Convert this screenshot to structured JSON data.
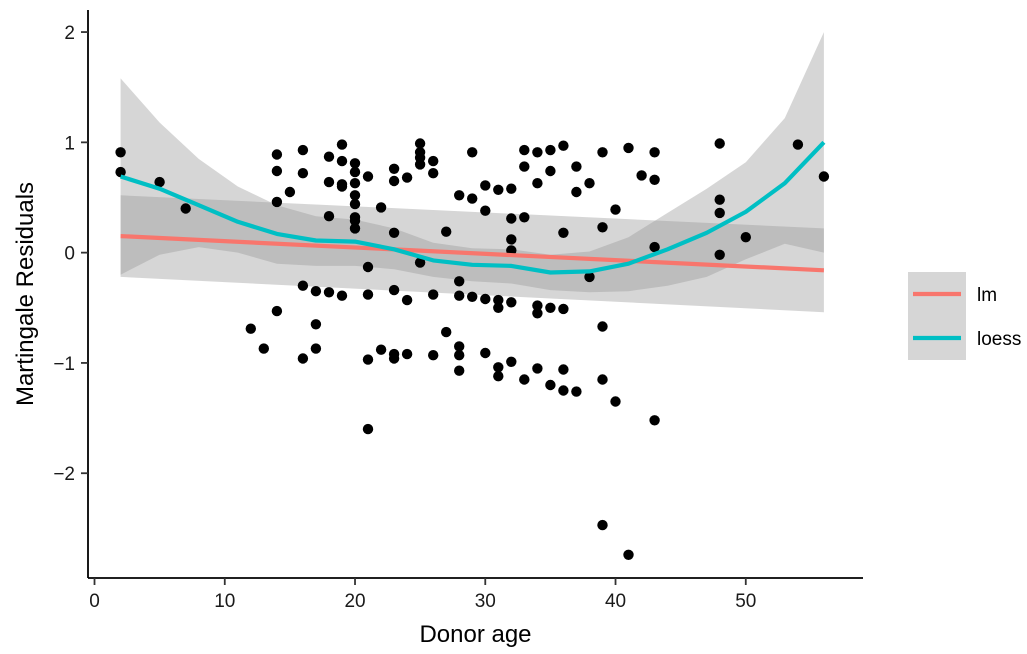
{
  "chart_data": {
    "type": "scatter",
    "title": "",
    "xlabel": "Donor age",
    "ylabel": "Martingale Residuals",
    "xlim": [
      -0.5,
      59
    ],
    "ylim": [
      -2.95,
      2.2
    ],
    "x_ticks": [
      0,
      10,
      20,
      30,
      40,
      50
    ],
    "y_ticks": [
      -2,
      -1,
      0,
      1,
      2
    ],
    "y_tick_labels": [
      "−2",
      "−1",
      "0",
      "1",
      "2"
    ],
    "grid": false,
    "legend_position": "right",
    "colors": {
      "points": "#000000",
      "lm": "#F8766D",
      "loess": "#00BFC4",
      "ribbon": "#999999"
    },
    "points": [
      [
        2,
        0.91
      ],
      [
        2,
        0.73
      ],
      [
        5,
        0.64
      ],
      [
        7,
        0.4
      ],
      [
        12,
        -0.69
      ],
      [
        13,
        -0.87
      ],
      [
        14,
        0.89
      ],
      [
        14,
        0.74
      ],
      [
        14,
        0.46
      ],
      [
        14,
        -0.53
      ],
      [
        15,
        0.55
      ],
      [
        16,
        0.93
      ],
      [
        16,
        0.72
      ],
      [
        16,
        -0.3
      ],
      [
        16,
        -0.96
      ],
      [
        17,
        -0.35
      ],
      [
        17,
        -0.65
      ],
      [
        17,
        -0.87
      ],
      [
        18,
        0.87
      ],
      [
        18,
        0.64
      ],
      [
        18,
        0.33
      ],
      [
        18,
        -0.36
      ],
      [
        19,
        0.98
      ],
      [
        19,
        0.83
      ],
      [
        19,
        0.62
      ],
      [
        19,
        0.6
      ],
      [
        19,
        -0.39
      ],
      [
        20,
        0.81
      ],
      [
        20,
        0.73
      ],
      [
        20,
        0.63
      ],
      [
        20,
        0.52
      ],
      [
        20,
        0.44
      ],
      [
        20,
        0.32
      ],
      [
        20,
        0.29
      ],
      [
        20,
        0.22
      ],
      [
        21,
        0.69
      ],
      [
        21,
        -0.13
      ],
      [
        21,
        -0.38
      ],
      [
        21,
        -0.97
      ],
      [
        21,
        -1.6
      ],
      [
        22,
        0.41
      ],
      [
        22,
        -0.88
      ],
      [
        23,
        0.76
      ],
      [
        23,
        0.65
      ],
      [
        23,
        0.18
      ],
      [
        23,
        -0.34
      ],
      [
        23,
        -0.92
      ],
      [
        23,
        -0.96
      ],
      [
        24,
        0.68
      ],
      [
        24,
        -0.43
      ],
      [
        24,
        -0.92
      ],
      [
        25,
        0.99
      ],
      [
        25,
        0.91
      ],
      [
        25,
        0.86
      ],
      [
        25,
        0.8
      ],
      [
        25,
        -0.09
      ],
      [
        26,
        0.83
      ],
      [
        26,
        0.72
      ],
      [
        26,
        -0.38
      ],
      [
        26,
        -0.93
      ],
      [
        27,
        0.19
      ],
      [
        27,
        -0.72
      ],
      [
        28,
        0.52
      ],
      [
        28,
        -0.26
      ],
      [
        28,
        -0.39
      ],
      [
        28,
        -0.85
      ],
      [
        28,
        -0.93
      ],
      [
        28,
        -1.07
      ],
      [
        29,
        0.91
      ],
      [
        29,
        0.49
      ],
      [
        29,
        -0.4
      ],
      [
        30,
        0.61
      ],
      [
        30,
        0.38
      ],
      [
        30,
        -0.42
      ],
      [
        30,
        -0.91
      ],
      [
        31,
        0.57
      ],
      [
        31,
        -0.43
      ],
      [
        31,
        -0.5
      ],
      [
        31,
        -1.04
      ],
      [
        31,
        -1.12
      ],
      [
        32,
        0.58
      ],
      [
        32,
        0.31
      ],
      [
        32,
        0.12
      ],
      [
        32,
        0.02
      ],
      [
        32,
        -0.45
      ],
      [
        32,
        -0.99
      ],
      [
        33,
        0.93
      ],
      [
        33,
        0.78
      ],
      [
        33,
        0.32
      ],
      [
        33,
        -1.15
      ],
      [
        34,
        0.91
      ],
      [
        34,
        0.63
      ],
      [
        34,
        -0.48
      ],
      [
        34,
        -0.55
      ],
      [
        34,
        -1.05
      ],
      [
        35,
        0.93
      ],
      [
        35,
        0.74
      ],
      [
        35,
        -0.5
      ],
      [
        35,
        -1.2
      ],
      [
        36,
        0.97
      ],
      [
        36,
        0.18
      ],
      [
        36,
        -0.51
      ],
      [
        36,
        -1.06
      ],
      [
        36,
        -1.25
      ],
      [
        37,
        0.78
      ],
      [
        37,
        0.55
      ],
      [
        37,
        -1.26
      ],
      [
        38,
        0.63
      ],
      [
        38,
        -0.22
      ],
      [
        39,
        0.91
      ],
      [
        39,
        0.23
      ],
      [
        39,
        -0.67
      ],
      [
        39,
        -1.15
      ],
      [
        39,
        -2.47
      ],
      [
        40,
        0.39
      ],
      [
        40,
        -1.35
      ],
      [
        41,
        0.95
      ],
      [
        41,
        -2.74
      ],
      [
        42,
        0.7
      ],
      [
        43,
        0.91
      ],
      [
        43,
        0.66
      ],
      [
        43,
        0.05
      ],
      [
        43,
        -1.52
      ],
      [
        48,
        0.99
      ],
      [
        48,
        0.48
      ],
      [
        48,
        0.36
      ],
      [
        48,
        -0.02
      ],
      [
        50,
        0.14
      ],
      [
        54,
        0.98
      ],
      [
        56,
        0.69
      ]
    ],
    "series": [
      {
        "name": "lm",
        "x": [
          2,
          56
        ],
        "y": [
          0.15,
          -0.16
        ],
        "ci_lower": [
          -0.22,
          -0.54
        ],
        "ci_upper": [
          0.52,
          0.22
        ]
      },
      {
        "name": "loess",
        "x": [
          2,
          5,
          8,
          11,
          14,
          17,
          20,
          23,
          26,
          29,
          32,
          35,
          38,
          41,
          44,
          47,
          50,
          53,
          56
        ],
        "y": [
          0.69,
          0.58,
          0.43,
          0.28,
          0.17,
          0.11,
          0.1,
          0.03,
          -0.07,
          -0.11,
          -0.12,
          -0.18,
          -0.17,
          -0.1,
          0.03,
          0.18,
          0.37,
          0.63,
          1.0
        ],
        "ci_lower": [
          -0.2,
          -0.02,
          0.05,
          0.0,
          -0.1,
          -0.12,
          -0.12,
          -0.15,
          -0.22,
          -0.26,
          -0.28,
          -0.34,
          -0.36,
          -0.35,
          -0.3,
          -0.22,
          -0.06,
          0.08,
          0.0
        ],
        "ci_upper": [
          1.58,
          1.18,
          0.85,
          0.6,
          0.43,
          0.33,
          0.3,
          0.22,
          0.09,
          0.04,
          0.03,
          -0.02,
          0.01,
          0.14,
          0.36,
          0.58,
          0.82,
          1.22,
          2.0
        ]
      }
    ]
  }
}
